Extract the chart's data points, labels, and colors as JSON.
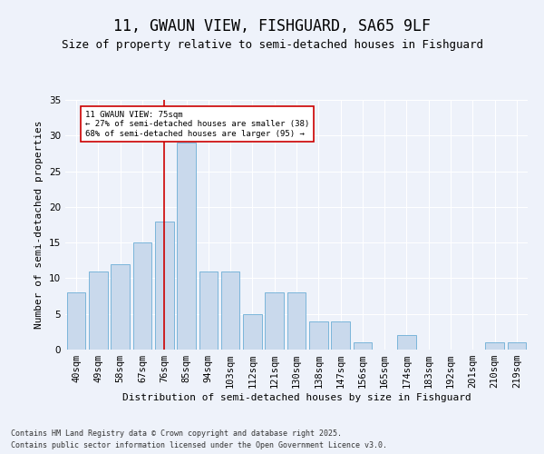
{
  "title": "11, GWAUN VIEW, FISHGUARD, SA65 9LF",
  "subtitle": "Size of property relative to semi-detached houses in Fishguard",
  "xlabel": "Distribution of semi-detached houses by size in Fishguard",
  "ylabel": "Number of semi-detached properties",
  "bins": [
    "40sqm",
    "49sqm",
    "58sqm",
    "67sqm",
    "76sqm",
    "85sqm",
    "94sqm",
    "103sqm",
    "112sqm",
    "121sqm",
    "130sqm",
    "138sqm",
    "147sqm",
    "156sqm",
    "165sqm",
    "174sqm",
    "183sqm",
    "192sqm",
    "201sqm",
    "210sqm",
    "219sqm"
  ],
  "values": [
    8,
    11,
    12,
    15,
    18,
    29,
    11,
    11,
    5,
    8,
    8,
    4,
    4,
    1,
    0,
    2,
    0,
    0,
    0,
    1,
    1
  ],
  "bar_color": "#c9d9ec",
  "bar_edge_color": "#6baed6",
  "property_label": "11 GWAUN VIEW: 75sqm",
  "pct_smaller": 27,
  "count_smaller": 38,
  "pct_larger": 68,
  "count_larger": 95,
  "vline_x_index": 4,
  "vline_color": "#cc0000",
  "annotation_box_edge": "#cc0000",
  "footer_line1": "Contains HM Land Registry data © Crown copyright and database right 2025.",
  "footer_line2": "Contains public sector information licensed under the Open Government Licence v3.0.",
  "ylim": [
    0,
    35
  ],
  "yticks": [
    0,
    5,
    10,
    15,
    20,
    25,
    30,
    35
  ],
  "background_color": "#eef2fa",
  "grid_color": "#ffffff",
  "title_fontsize": 12,
  "subtitle_fontsize": 9,
  "axis_fontsize": 8,
  "tick_fontsize": 7.5,
  "footer_fontsize": 6
}
